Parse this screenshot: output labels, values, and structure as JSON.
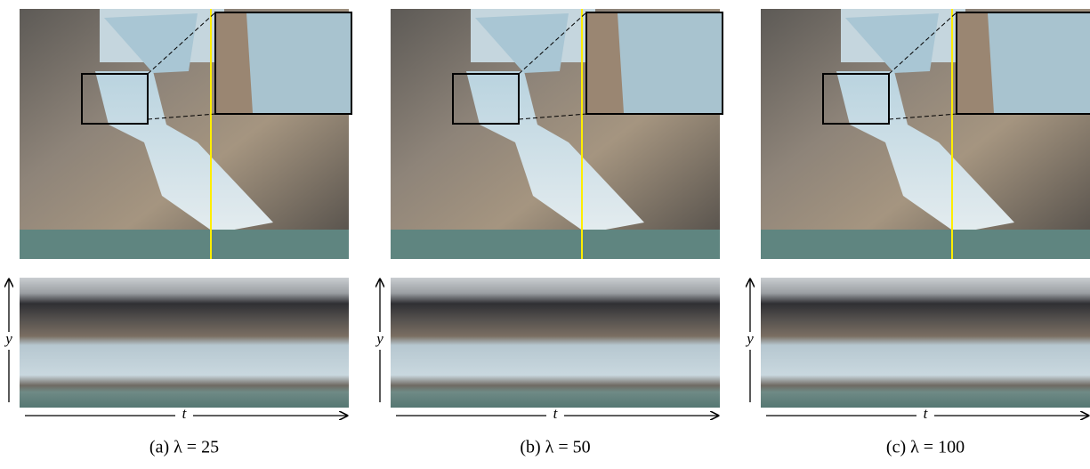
{
  "panels": [
    {
      "caption": "(a) λ = 25",
      "y_label": "y",
      "t_label": "t"
    },
    {
      "caption": "(b) λ = 50",
      "y_label": "y",
      "t_label": "t"
    },
    {
      "caption": "(c) λ = 100",
      "y_label": "y",
      "t_label": "t"
    }
  ]
}
